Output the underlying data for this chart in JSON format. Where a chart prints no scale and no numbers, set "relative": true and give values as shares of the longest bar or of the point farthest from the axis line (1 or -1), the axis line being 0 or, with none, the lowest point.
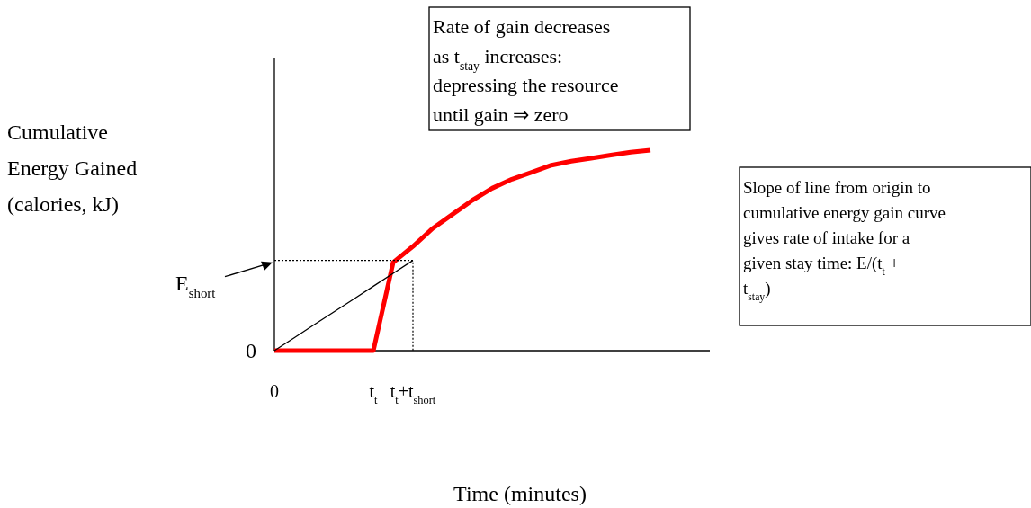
{
  "chart_data": {
    "type": "line",
    "relative": true,
    "xlabel": "Time (minutes)",
    "categories": [
      "0",
      null,
      null,
      null,
      null,
      "t$_{t}$",
      null,
      "t$_{t}$+t$_{short}$",
      null,
      null,
      null,
      null,
      null,
      null,
      null,
      null,
      null,
      null,
      null,
      null,
      null,
      null,
      null
    ],
    "series": [
      {
        "color": "#ff0000",
        "values": [
          0,
          0,
          0,
          0,
          0,
          0,
          0.44,
          0.52,
          0.61,
          0.68,
          0.75,
          0.81,
          0.855,
          0.89,
          0.925,
          0.945,
          0.96,
          0.975,
          0.99,
          1,
          null,
          null,
          null
        ]
      },
      {
        "color": "#000000",
        "values": [
          0,
          0.064,
          0.129,
          0.193,
          0.257,
          0.321,
          0.386,
          0.45,
          null,
          null,
          null,
          null,
          null,
          null,
          null,
          null,
          null,
          null,
          null,
          null,
          null,
          null,
          null
        ]
      }
    ],
    "annotations": [
      "Rate of gain decreases as t$_{stay}$ increases: depressing the resource until gain ⇒ zero",
      "Slope of line from origin to cumulative energy gain curve gives rate of intake for a given stay time: E/(t$_{t}$ + t$_{stay}$)",
      "0",
      "E$_{short}$",
      "Cumulative Energy Gained (calories, kJ)"
    ]
  }
}
